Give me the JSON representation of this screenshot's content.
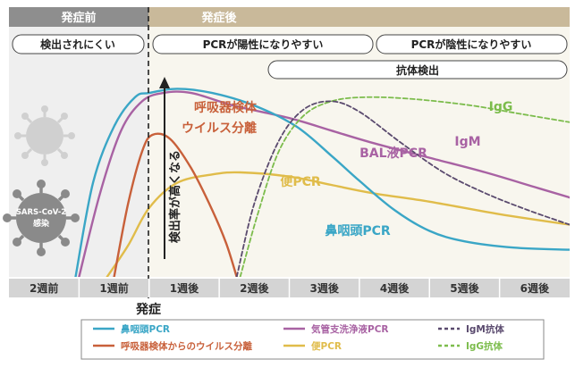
{
  "chart_data": {
    "type": "line",
    "phases": {
      "before": "発症前",
      "after": "発症後"
    },
    "banners": {
      "hard": "検出されにくい",
      "pos": "PCRが陽性になりやすい",
      "neg": "PCRが陰性になりやすい",
      "ab": "抗体検出"
    },
    "x_ticks": [
      "2週前",
      "1週前",
      "1週後",
      "2週後",
      "3週後",
      "4週後",
      "5週後",
      "6週後"
    ],
    "onset_label": "発症",
    "arrow_label": "検出率が高くなる",
    "virus_label_1": "SARS-CoV-2",
    "virus_label_2": "感染",
    "xlim": [
      -2,
      6
    ],
    "ylim": [
      0,
      100
    ],
    "series": [
      {
        "key": "np",
        "name": "鼻咽頭PCR",
        "label": "鼻咽頭PCR",
        "color": "#3aa6c6",
        "dash": false,
        "points": [
          [
            -1.05,
            0
          ],
          [
            -0.8,
            45
          ],
          [
            -0.5,
            72
          ],
          [
            -0.2,
            86
          ],
          [
            0,
            88
          ],
          [
            0.4,
            90
          ],
          [
            0.9,
            88
          ],
          [
            1.5,
            82
          ],
          [
            2.1,
            72
          ],
          [
            2.6,
            58
          ],
          [
            3.0,
            46
          ],
          [
            3.5,
            32
          ],
          [
            4.0,
            22
          ],
          [
            4.5,
            17
          ],
          [
            5.2,
            14
          ],
          [
            6.0,
            13
          ]
        ]
      },
      {
        "key": "resp",
        "name": "呼吸器検体からのウイルス分離",
        "label1": "呼吸器検体",
        "label2": "ウイルス分離",
        "color": "#c8603a",
        "dash": false,
        "points": [
          [
            -0.5,
            0
          ],
          [
            -0.3,
            35
          ],
          [
            -0.1,
            60
          ],
          [
            0.05,
            68
          ],
          [
            0.3,
            66
          ],
          [
            0.6,
            52
          ],
          [
            0.9,
            32
          ],
          [
            1.1,
            16
          ],
          [
            1.25,
            0
          ]
        ]
      },
      {
        "key": "bal",
        "name": "気管支洗浄液PCR",
        "label": "BAL液PCR",
        "color": "#a862a3",
        "dash": false,
        "points": [
          [
            -1.0,
            0
          ],
          [
            -0.7,
            40
          ],
          [
            -0.4,
            70
          ],
          [
            -0.1,
            84
          ],
          [
            0.2,
            88
          ],
          [
            0.6,
            88
          ],
          [
            1.2,
            82
          ],
          [
            2.0,
            76
          ],
          [
            2.6,
            70
          ],
          [
            3.2,
            64
          ],
          [
            4.0,
            57
          ],
          [
            4.8,
            50
          ],
          [
            5.5,
            43
          ],
          [
            6.0,
            38
          ]
        ]
      },
      {
        "key": "stool",
        "name": "便PCR",
        "label": "便PCR",
        "color": "#e0bc4a",
        "dash": false,
        "points": [
          [
            -0.6,
            0
          ],
          [
            -0.3,
            15
          ],
          [
            0,
            33
          ],
          [
            0.4,
            45
          ],
          [
            0.9,
            49
          ],
          [
            1.3,
            50
          ],
          [
            2.0,
            48
          ],
          [
            2.6,
            44
          ],
          [
            3.2,
            40
          ],
          [
            4.0,
            36
          ],
          [
            5.0,
            30
          ],
          [
            6.0,
            25
          ]
        ]
      },
      {
        "key": "igm",
        "name": "IgM抗体",
        "label": "IgM",
        "color": "#5a4a6e",
        "dash": true,
        "points": [
          [
            1.25,
            0
          ],
          [
            1.5,
            35
          ],
          [
            1.85,
            65
          ],
          [
            2.2,
            80
          ],
          [
            2.6,
            84
          ],
          [
            3.0,
            79
          ],
          [
            3.6,
            64
          ],
          [
            4.2,
            50
          ],
          [
            4.8,
            40
          ],
          [
            5.4,
            32
          ],
          [
            6.0,
            25
          ]
        ]
      },
      {
        "key": "igg",
        "name": "IgG抗体",
        "label": "IgG",
        "color": "#7cbc4c",
        "dash": true,
        "points": [
          [
            1.3,
            0
          ],
          [
            1.55,
            30
          ],
          [
            1.85,
            60
          ],
          [
            2.2,
            77
          ],
          [
            2.6,
            84
          ],
          [
            3.1,
            86
          ],
          [
            3.8,
            85
          ],
          [
            4.6,
            82
          ],
          [
            5.3,
            78
          ],
          [
            6.0,
            74
          ]
        ]
      }
    ],
    "legend": [
      {
        "label": "鼻咽頭PCR",
        "color": "#3aa6c6",
        "dash": false
      },
      {
        "label": "気管支洗浄液PCR",
        "color": "#a862a3",
        "dash": false
      },
      {
        "label": "IgM抗体",
        "color": "#5a4a6e",
        "dash": true
      },
      {
        "label": "呼吸器検体からのウイルス分離",
        "color": "#c8603a",
        "dash": false
      },
      {
        "label": "便PCR",
        "color": "#e0bc4a",
        "dash": false
      },
      {
        "label": "IgG抗体",
        "color": "#7cbc4c",
        "dash": true
      }
    ]
  }
}
